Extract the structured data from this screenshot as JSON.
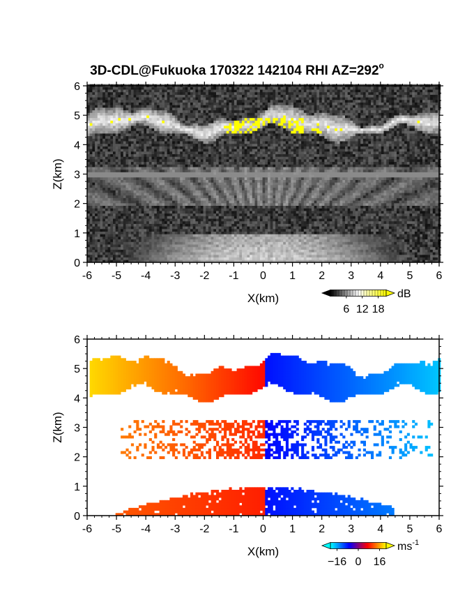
{
  "title_main": "3D-CDL@Fukuoka 170322 142104 RHI AZ=292",
  "title_degree": "o",
  "chart_data": [
    {
      "type": "heatmap",
      "panel": "top",
      "quantity": "backscatter intensity",
      "xlabel": "X(km)",
      "ylabel": "Z(km)",
      "xlim": [
        -6,
        6
      ],
      "ylim": [
        0,
        6
      ],
      "xticks": [
        "-6",
        "-5",
        "-4",
        "-3",
        "-2",
        "-1",
        "0",
        "1",
        "2",
        "3",
        "4",
        "5",
        "6"
      ],
      "yticks": [
        "0",
        "1",
        "2",
        "3",
        "4",
        "5",
        "6"
      ],
      "colorbar": {
        "unit": "dB",
        "ticks": [
          "6",
          "12",
          "18"
        ],
        "tick_values": [
          6,
          12,
          18
        ],
        "range": [
          0,
          21
        ],
        "colors": [
          "#000000",
          "#ffffff",
          "#ffff00"
        ]
      },
      "layers": [
        {
          "feature": "upper cloud layer",
          "z_range_km": [
            4.1,
            5.4
          ],
          "x_range_km": [
            -6,
            6
          ],
          "max_dB": 18
        },
        {
          "feature": "mid-level layer",
          "z_range_km": [
            1.9,
            3.2
          ],
          "x_range_km": [
            -6,
            6
          ],
          "max_dB": 9
        },
        {
          "feature": "boundary layer",
          "z_range_km": [
            0,
            0.9
          ],
          "x_range_km": [
            -4.5,
            4.5
          ],
          "max_dB": 14
        }
      ]
    },
    {
      "type": "heatmap",
      "panel": "bottom",
      "quantity": "radial (Doppler) velocity",
      "xlabel": "X(km)",
      "ylabel": "Z(km)",
      "xlim": [
        -6,
        6
      ],
      "ylim": [
        0,
        6
      ],
      "xticks": [
        "-6",
        "-5",
        "-4",
        "-3",
        "-2",
        "-1",
        "0",
        "1",
        "2",
        "3",
        "4",
        "5",
        "6"
      ],
      "yticks": [
        "0",
        "1",
        "2",
        "3",
        "4",
        "5",
        "6"
      ],
      "colorbar": {
        "unit": "ms",
        "unit_exponent": "-1",
        "ticks": [
          "−16",
          "0",
          "16"
        ],
        "tick_values": [
          -16,
          0,
          16
        ],
        "range": [
          -21,
          21
        ],
        "colors": [
          "#00ffff",
          "#0000ff",
          "#ff0000",
          "#ffff00"
        ]
      },
      "layers": [
        {
          "feature": "upper cloud layer",
          "z_range_km": [
            3.8,
            5.5
          ],
          "x_range_km": [
            -5.9,
            6
          ],
          "velocity_left_ms": 16,
          "velocity_right_ms": -16
        },
        {
          "feature": "mid-level layer",
          "z_range_km": [
            1.9,
            3.2
          ],
          "x_range_km": [
            -4.9,
            5.7
          ],
          "velocity_left_ms": 10,
          "velocity_right_ms": -12
        },
        {
          "feature": "boundary layer",
          "z_range_km": [
            0,
            0.9
          ],
          "x_range_km": [
            -5.3,
            4.4
          ],
          "velocity_left_ms": 5,
          "velocity_right_ms": -8
        }
      ]
    }
  ]
}
